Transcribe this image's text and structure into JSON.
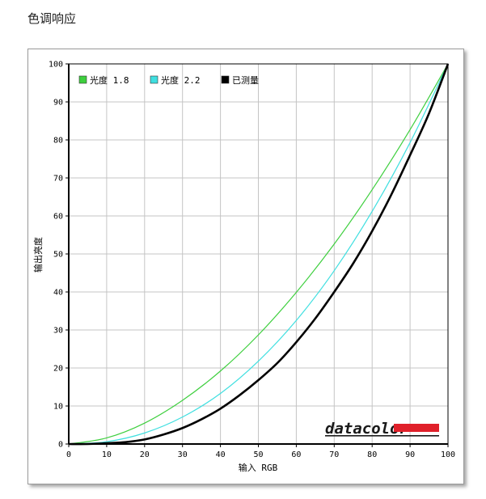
{
  "page": {
    "title": "色调响应"
  },
  "chart_data": {
    "type": "line",
    "title": "",
    "xlabel": "输入 RGB",
    "ylabel": "输出亮度",
    "xlim": [
      0,
      100
    ],
    "ylim": [
      0,
      100
    ],
    "x_ticks": [
      0,
      10,
      20,
      30,
      40,
      50,
      60,
      70,
      80,
      90,
      100
    ],
    "y_ticks": [
      0,
      10,
      20,
      30,
      40,
      50,
      60,
      70,
      80,
      90,
      100
    ],
    "grid": true,
    "legend_position": "top-left",
    "series": [
      {
        "name": "光度 1.8",
        "color": "#3ecf3e",
        "x": [
          0,
          10,
          20,
          30,
          40,
          50,
          60,
          70,
          80,
          90,
          100
        ],
        "y": [
          0,
          1.6,
          5.5,
          11.5,
          19.2,
          28.7,
          39.9,
          52.6,
          66.9,
          82.7,
          100
        ]
      },
      {
        "name": "光度 2.2",
        "color": "#3fdfe0",
        "x": [
          0,
          10,
          20,
          30,
          40,
          50,
          60,
          70,
          80,
          90,
          100
        ],
        "y": [
          0,
          0.6,
          2.9,
          7.1,
          13.3,
          21.8,
          32.5,
          45.6,
          61.2,
          79.3,
          100
        ]
      },
      {
        "name": "已测量",
        "color": "#000000",
        "x": [
          0,
          5,
          10,
          15,
          20,
          25,
          30,
          35,
          40,
          45,
          50,
          55,
          60,
          65,
          70,
          75,
          80,
          85,
          90,
          95,
          100
        ],
        "y": [
          0,
          0,
          0.2,
          0.5,
          1.2,
          2.5,
          4.2,
          6.5,
          9.3,
          12.8,
          16.8,
          21.3,
          26.8,
          33.0,
          40.0,
          47.5,
          56.0,
          65.5,
          76.0,
          87.0,
          100
        ]
      }
    ]
  },
  "watermark": {
    "brand": "datacolor",
    "accent_color": "#e0202a"
  }
}
